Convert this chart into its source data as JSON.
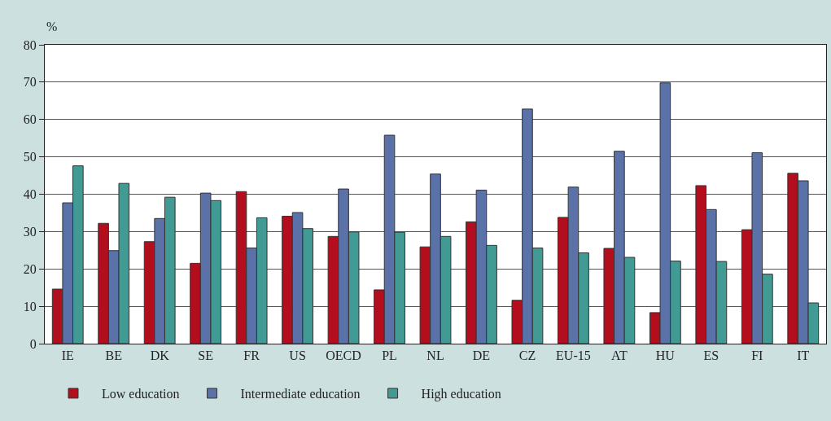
{
  "chart_data": {
    "type": "bar",
    "ylabel": "%",
    "categories": [
      "IE",
      "BE",
      "DK",
      "SE",
      "FR",
      "US",
      "OECD",
      "PL",
      "NL",
      "DE",
      "CZ",
      "EU-15",
      "AT",
      "HU",
      "ES",
      "FI",
      "IT"
    ],
    "series": [
      {
        "name": "Low education",
        "color": "#b20e1e",
        "values": [
          14.6,
          32.2,
          27.3,
          21.5,
          40.7,
          34.1,
          28.7,
          14.4,
          25.9,
          32.6,
          11.6,
          33.8,
          25.5,
          8.3,
          42.3,
          30.5,
          45.6
        ]
      },
      {
        "name": "Intermediate education",
        "color": "#5a72a8",
        "values": [
          37.7,
          24.9,
          33.5,
          40.3,
          25.6,
          35.1,
          41.4,
          55.8,
          45.4,
          41.1,
          62.8,
          41.9,
          51.5,
          69.8,
          35.9,
          51.1,
          43.6
        ]
      },
      {
        "name": "High education",
        "color": "#419a94",
        "values": [
          47.6,
          42.9,
          39.2,
          38.3,
          33.7,
          30.8,
          29.9,
          29.8,
          28.7,
          26.3,
          25.6,
          24.3,
          23.1,
          22.1,
          22.0,
          18.6,
          10.9
        ]
      }
    ],
    "ylim": [
      0,
      80
    ],
    "yticks": [
      0,
      10,
      20,
      30,
      40,
      50,
      60,
      70,
      80
    ],
    "grid": "y",
    "legend": "bottom left"
  }
}
